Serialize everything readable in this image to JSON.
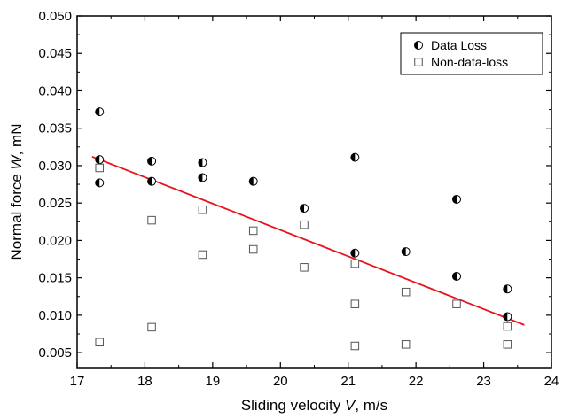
{
  "chart_data": {
    "type": "scatter",
    "xlabel_parts": [
      "Sliding velocity ",
      "V",
      ", m/s"
    ],
    "ylabel_parts": [
      "Normal force ",
      "W",
      ", mN"
    ],
    "xlim": [
      17,
      24
    ],
    "ylim": [
      0.003,
      0.05
    ],
    "x_ticks": [
      17,
      18,
      19,
      20,
      21,
      22,
      23,
      24
    ],
    "x_tick_labels": [
      "17",
      "18",
      "19",
      "20",
      "21",
      "22",
      "23",
      "24"
    ],
    "y_ticks": [
      0.005,
      0.01,
      0.015,
      0.02,
      0.025,
      0.03,
      0.035,
      0.04,
      0.045,
      0.05
    ],
    "y_tick_labels": [
      "0.005",
      "0.010",
      "0.015",
      "0.020",
      "0.025",
      "0.030",
      "0.035",
      "0.040",
      "0.045",
      "0.050"
    ],
    "grid": false,
    "legend_position": "top-right",
    "series": [
      {
        "name": "Data Loss",
        "marker": "half-filled-circle",
        "color": "#000000",
        "points": [
          [
            17.33,
            0.0372
          ],
          [
            17.33,
            0.0308
          ],
          [
            17.33,
            0.0277
          ],
          [
            18.1,
            0.0306
          ],
          [
            18.1,
            0.0279
          ],
          [
            18.85,
            0.0304
          ],
          [
            18.85,
            0.0284
          ],
          [
            19.6,
            0.0279
          ],
          [
            20.35,
            0.0243
          ],
          [
            21.1,
            0.0311
          ],
          [
            21.1,
            0.0183
          ],
          [
            21.85,
            0.0185
          ],
          [
            22.6,
            0.0255
          ],
          [
            22.6,
            0.0152
          ],
          [
            23.35,
            0.0135
          ],
          [
            23.35,
            0.0098
          ]
        ]
      },
      {
        "name": "Non-data-loss",
        "marker": "open-square",
        "color": "#555555",
        "points": [
          [
            17.33,
            0.0297
          ],
          [
            17.33,
            0.0064
          ],
          [
            18.1,
            0.0227
          ],
          [
            18.1,
            0.0084
          ],
          [
            18.85,
            0.0241
          ],
          [
            18.85,
            0.0181
          ],
          [
            19.6,
            0.0213
          ],
          [
            19.6,
            0.0188
          ],
          [
            20.35,
            0.0221
          ],
          [
            20.35,
            0.0164
          ],
          [
            21.1,
            0.0169
          ],
          [
            21.1,
            0.0115
          ],
          [
            21.1,
            0.0059
          ],
          [
            21.85,
            0.0131
          ],
          [
            21.85,
            0.0061
          ],
          [
            22.6,
            0.0115
          ],
          [
            23.35,
            0.0085
          ],
          [
            23.35,
            0.0061
          ]
        ]
      }
    ],
    "fit_line": {
      "color": "#e8141b",
      "points": [
        [
          17.22,
          0.0312
        ],
        [
          23.6,
          0.0087
        ]
      ]
    }
  }
}
